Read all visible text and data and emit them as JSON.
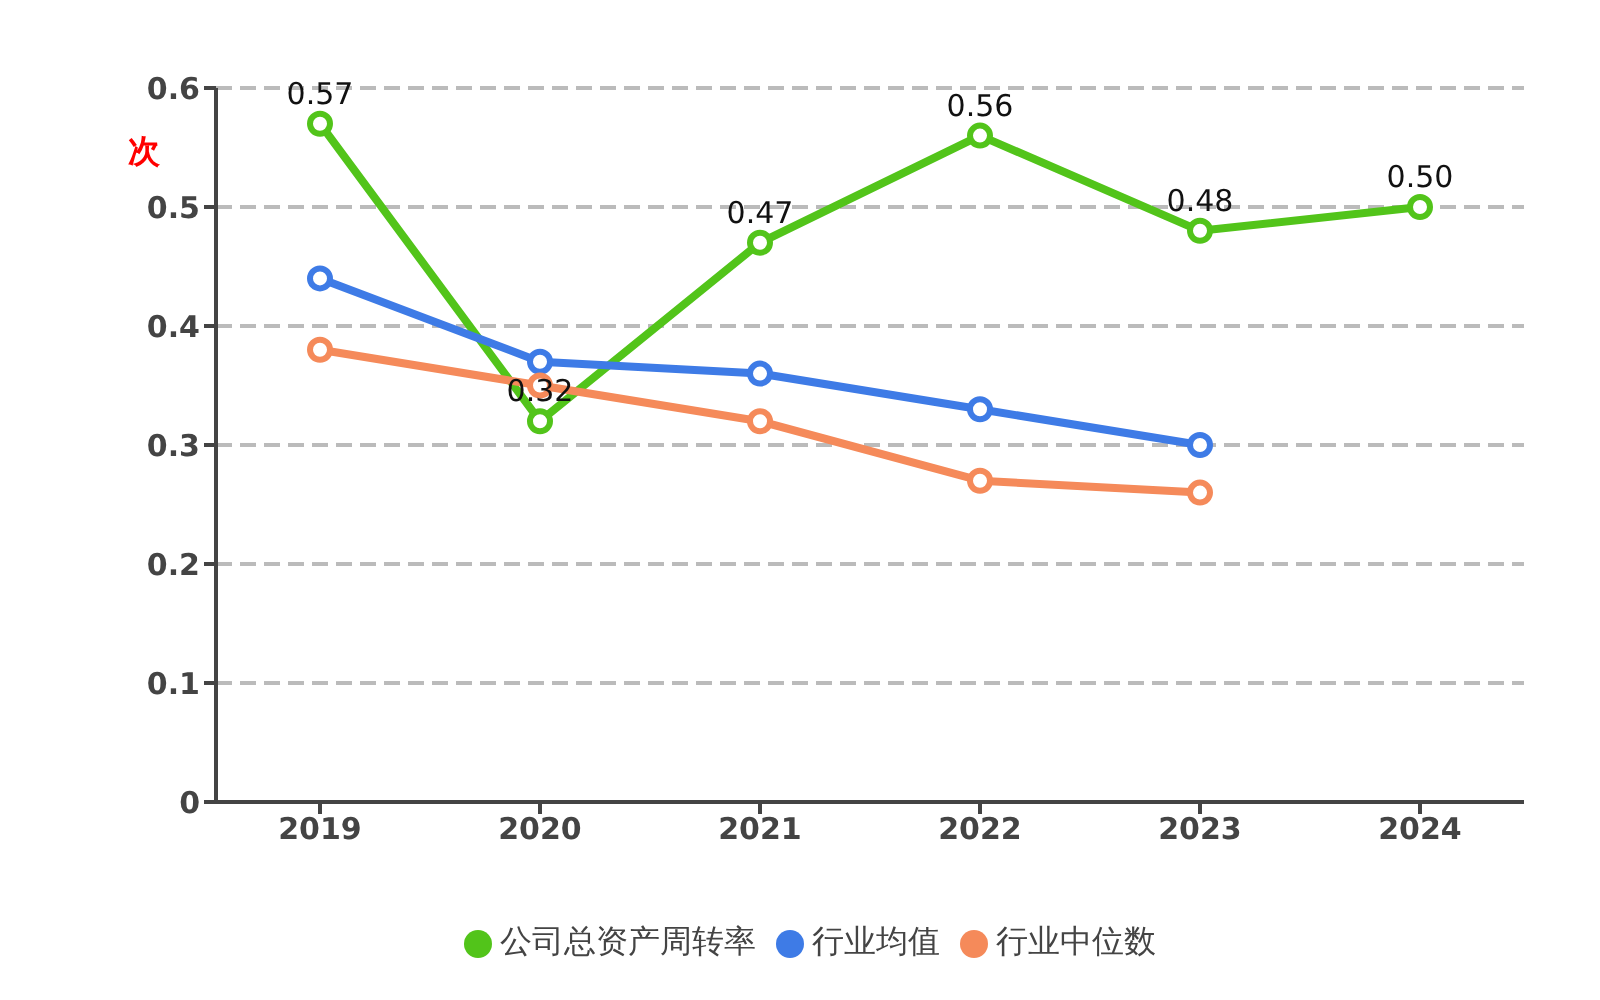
{
  "chart_data": {
    "type": "line",
    "ylabel": "次",
    "categories": [
      "2019",
      "2020",
      "2021",
      "2022",
      "2023",
      "2024"
    ],
    "series": [
      {
        "name": "公司总资产周转率",
        "color": "#52c41a",
        "values": [
          0.57,
          0.32,
          0.47,
          0.56,
          0.48,
          0.5
        ],
        "value_labels": [
          "0.57",
          "0.32",
          "0.47",
          "0.56",
          "0.48",
          "0.50"
        ]
      },
      {
        "name": "行业均值",
        "color": "#3e7be6",
        "values": [
          0.44,
          0.37,
          0.36,
          0.33,
          0.3,
          null
        ]
      },
      {
        "name": "行业中位数",
        "color": "#f58a5a",
        "values": [
          0.38,
          0.35,
          0.32,
          0.27,
          0.26,
          null
        ]
      }
    ],
    "ylim": [
      0,
      0.6
    ],
    "yticks": [
      0,
      0.1,
      0.2,
      0.3,
      0.4,
      0.5,
      0.6
    ],
    "grid": "y",
    "legend": "bottom",
    "marker": "circle"
  }
}
